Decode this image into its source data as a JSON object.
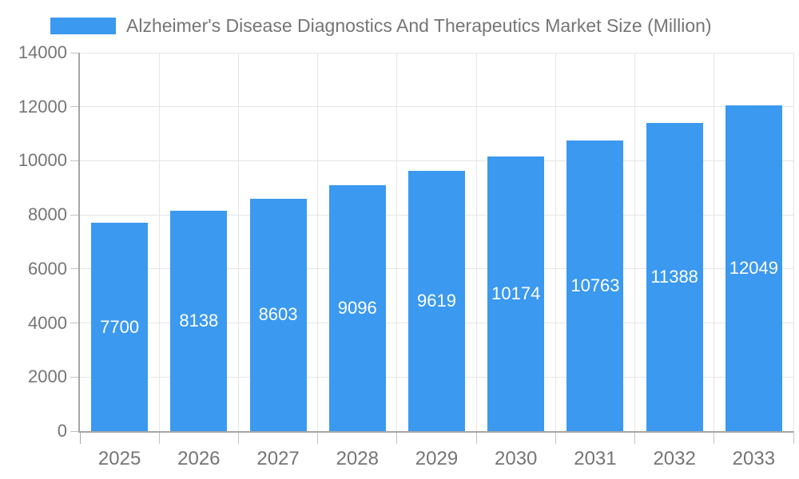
{
  "legend": {
    "label": "Alzheimer's Disease Diagnostics And Therapeutics Market Size (Million)",
    "swatch_color": "#3B99F0"
  },
  "style": {
    "bar_color": "#3B99F0",
    "bar_label_color": "#ffffff",
    "gridline_color": "#e6e6e6",
    "tick_color": "#c2c2c2",
    "axis_line_color": "#a6a6a6",
    "tick_label_color": "#757575",
    "background_color": "#ffffff"
  },
  "chart_data": {
    "type": "bar",
    "title": "Alzheimer's Disease Diagnostics And Therapeutics Market Size (Million)",
    "categories": [
      "2025",
      "2026",
      "2027",
      "2028",
      "2029",
      "2030",
      "2031",
      "2032",
      "2033"
    ],
    "values": [
      7700,
      8138,
      8603,
      9096,
      9619,
      10174,
      10763,
      11388,
      12049
    ],
    "series_name": "Alzheimer's Disease Diagnostics And Therapeutics Market Size (Million)",
    "xlabel": "",
    "ylabel": "",
    "ylim": [
      0,
      14000
    ],
    "ytick_step": 2000,
    "ytick_labels": [
      "0",
      "2000",
      "4000",
      "6000",
      "8000",
      "10000",
      "12000",
      "14000"
    ],
    "grid": true,
    "legend_position": "top",
    "bar_labels_inside": true
  }
}
